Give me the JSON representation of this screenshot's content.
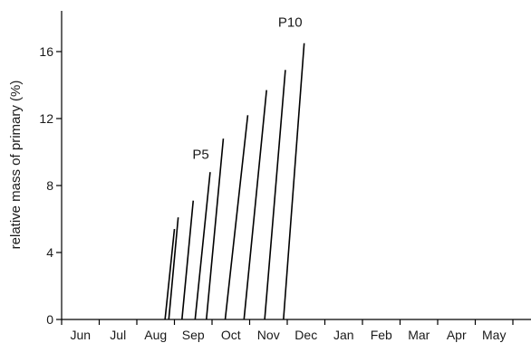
{
  "chart_data": {
    "type": "line",
    "ylabel": "relative mass of primary (%)",
    "ylim": [
      0,
      18
    ],
    "yticks": [
      0,
      4,
      8,
      12,
      16
    ],
    "ytick_labels": [
      "0",
      "4",
      "8",
      "12",
      "16"
    ],
    "months": [
      "Jun",
      "Jul",
      "Aug",
      "Sep",
      "Oct",
      "Nov",
      "Dec",
      "Jan",
      "Feb",
      "Mar",
      "Apr",
      "May"
    ],
    "grid": false,
    "line_color": "#000000",
    "series": [
      {
        "values": [
          [
            2.75,
            0
          ],
          [
            3.0,
            5.4
          ]
        ]
      },
      {
        "values": [
          [
            2.85,
            0
          ],
          [
            3.1,
            6.1
          ]
        ]
      },
      {
        "values": [
          [
            3.2,
            0
          ],
          [
            3.5,
            7.1
          ]
        ]
      },
      {
        "values": [
          [
            3.55,
            0
          ],
          [
            3.95,
            8.8
          ]
        ]
      },
      {
        "values": [
          [
            3.85,
            0
          ],
          [
            4.3,
            10.8
          ]
        ]
      },
      {
        "values": [
          [
            4.35,
            0
          ],
          [
            4.95,
            12.2
          ]
        ]
      },
      {
        "values": [
          [
            4.85,
            0
          ],
          [
            5.45,
            13.7
          ]
        ]
      },
      {
        "values": [
          [
            5.4,
            0
          ],
          [
            5.95,
            14.9
          ]
        ]
      },
      {
        "values": [
          [
            5.9,
            0
          ],
          [
            6.45,
            16.5
          ]
        ]
      }
    ],
    "annotations": [
      {
        "text": "P5",
        "x": 3.92,
        "y": 9.6
      },
      {
        "text": "P10",
        "x": 6.4,
        "y": 17.5
      }
    ]
  }
}
